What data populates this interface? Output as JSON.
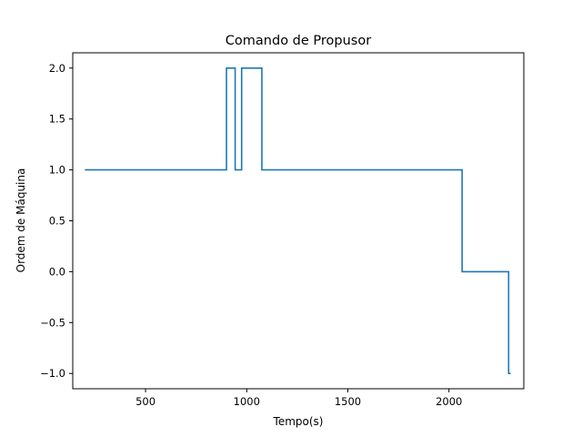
{
  "chart_data": {
    "type": "line",
    "title": "Comando de Propusor",
    "xlabel": "Tempo(s)",
    "ylabel": "Ordem de Máquina",
    "xlim": [
      140,
      2370
    ],
    "ylim": [
      -1.15,
      2.15
    ],
    "xticks": [
      500,
      1000,
      1500,
      2000
    ],
    "yticks": [
      -1.0,
      -0.5,
      0.0,
      0.5,
      1.0,
      1.5,
      2.0
    ],
    "xtick_labels": [
      "500",
      "1000",
      "1500",
      "2000"
    ],
    "ytick_labels": [
      "−1.0",
      "−0.5",
      "0.0",
      "0.5",
      "1.0",
      "1.5",
      "2.0"
    ],
    "grid": false,
    "series": [
      {
        "color": "#1f77b4",
        "x": [
          200,
          900,
          900,
          943,
          943,
          975,
          975,
          1075,
          1075,
          2065,
          2065,
          2295,
          2295,
          2305
        ],
        "y": [
          1,
          1,
          2,
          2,
          1,
          1,
          2,
          2,
          1,
          1,
          0,
          0,
          -1,
          -1
        ]
      }
    ]
  }
}
